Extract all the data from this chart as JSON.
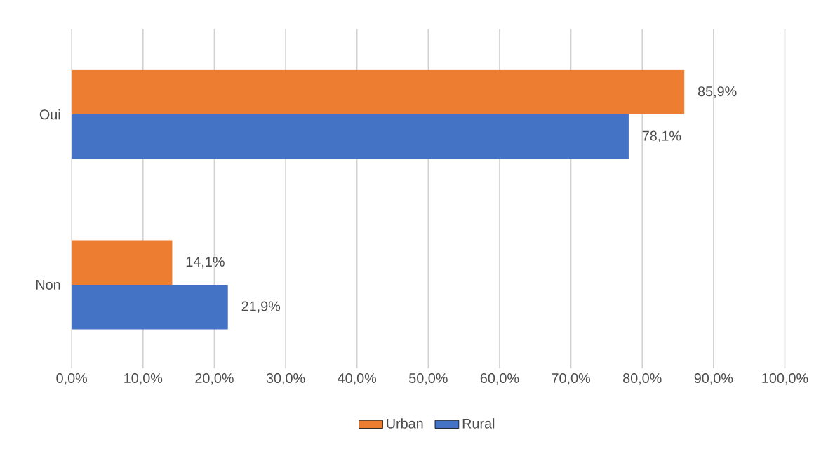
{
  "chart_data": {
    "type": "bar",
    "orientation": "horizontal",
    "categories": [
      "Oui",
      "Non"
    ],
    "series": [
      {
        "name": "Urban",
        "color": "#ed7d31",
        "values": [
          85.9,
          14.1
        ],
        "value_labels": [
          "85,9%",
          "14,1%"
        ]
      },
      {
        "name": "Rural",
        "color": "#4472c4",
        "values": [
          78.1,
          21.9
        ],
        "value_labels": [
          "78,1%",
          "21,9%"
        ]
      }
    ],
    "xlim": [
      0,
      100
    ],
    "xticks": [
      {
        "value": 0,
        "label": "0,0%"
      },
      {
        "value": 10,
        "label": "10,0%"
      },
      {
        "value": 20,
        "label": "20,0%"
      },
      {
        "value": 30,
        "label": "30,0%"
      },
      {
        "value": 40,
        "label": "40,0%"
      },
      {
        "value": 50,
        "label": "50,0%"
      },
      {
        "value": 60,
        "label": "60,0%"
      },
      {
        "value": 70,
        "label": "70,0%"
      },
      {
        "value": 80,
        "label": "80,0%"
      },
      {
        "value": 90,
        "label": "90,0%"
      },
      {
        "value": 100,
        "label": "100,0%"
      }
    ],
    "grid": "x",
    "legend": "bottom"
  }
}
